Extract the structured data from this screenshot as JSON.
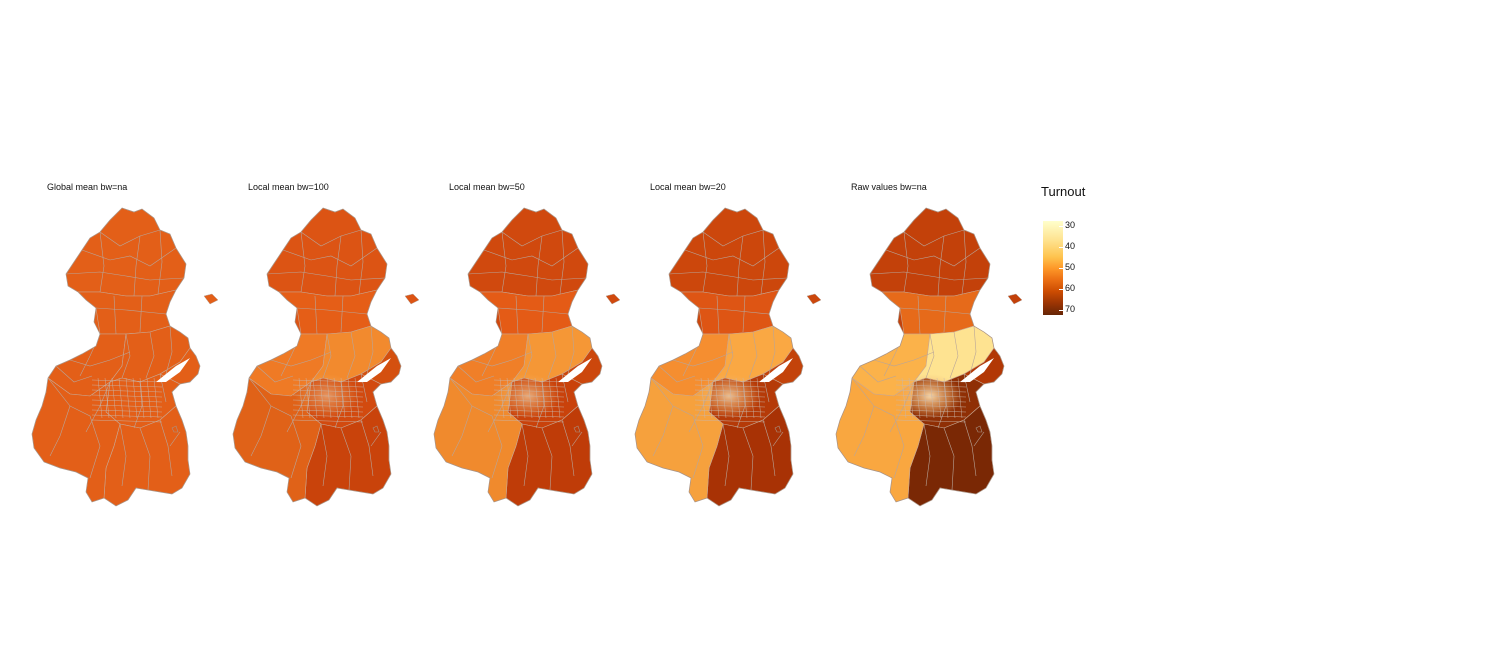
{
  "panels": [
    {
      "title": "Global mean bw=na",
      "fills": [
        "#e35f18",
        "#e35f18",
        "#e35f18",
        "#e35f18",
        "#e35f18",
        "#e35f18",
        "#e35f18",
        "#e35f18"
      ],
      "center_glow": 0.0
    },
    {
      "title": "Local mean bw=100",
      "fills": [
        "#dc5414",
        "#e55e17",
        "#ef7a25",
        "#f28a2e",
        "#d24a0f",
        "#c9430b",
        "#e06218",
        "#d4500f"
      ],
      "center_glow": 0.55
    },
    {
      "title": "Local mean bw=50",
      "fills": [
        "#d0490e",
        "#e45b16",
        "#f07f28",
        "#f59736",
        "#c9420b",
        "#bf3c08",
        "#f08a2d",
        "#cc470c"
      ],
      "center_glow": 0.7
    },
    {
      "title": "Local mean bw=20",
      "fills": [
        "#cc470c",
        "#de5514",
        "#f58e30",
        "#faa843",
        "#b53a08",
        "#a83205",
        "#f6a13d",
        "#c3430a"
      ],
      "center_glow": 0.85
    },
    {
      "title": "Raw values bw=na",
      "fills": [
        "#c3410a",
        "#e66a1a",
        "#fbb24a",
        "#fee391",
        "#8f2f05",
        "#7a2805",
        "#f9a740",
        "#b23805"
      ],
      "center_glow": 1.0
    }
  ],
  "legend": {
    "title": "Turnout",
    "ticks": [
      "30",
      "40",
      "50",
      "60",
      "70"
    ],
    "colors": [
      "#ffffcc",
      "#fee391",
      "#fec44f",
      "#fe9929",
      "#ec7014",
      "#cc4c02",
      "#993404",
      "#662506"
    ]
  }
}
